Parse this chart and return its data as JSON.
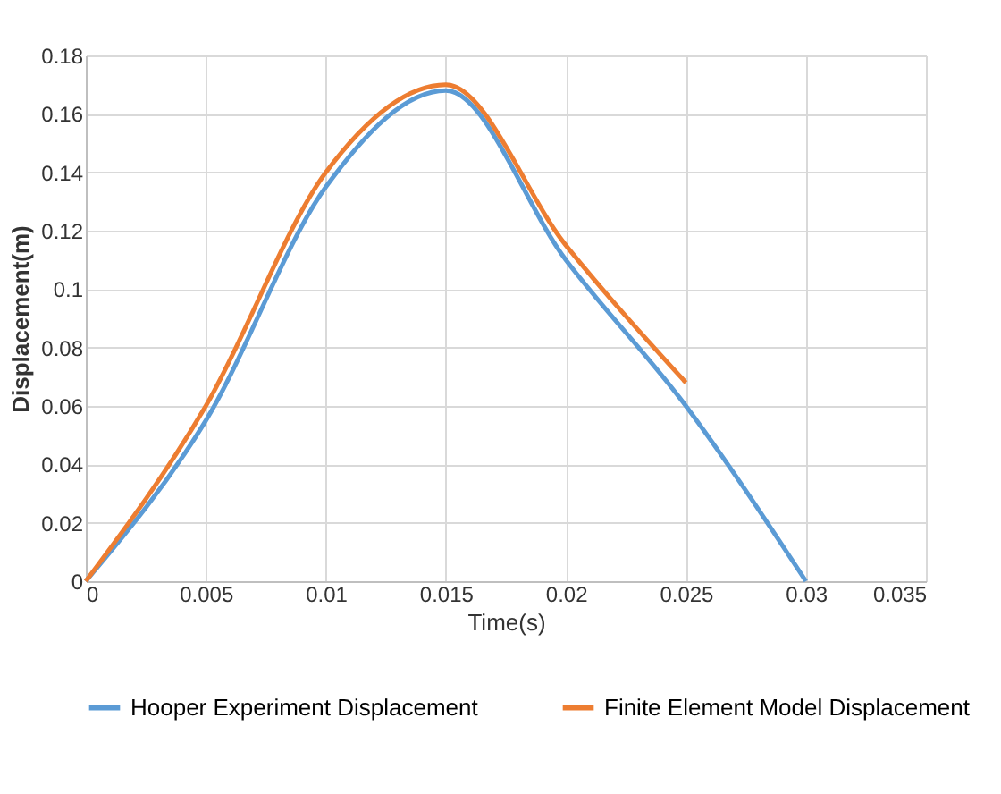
{
  "chart_data": {
    "type": "line",
    "xlabel": "Time(s)",
    "ylabel": "Displacement(m)",
    "x": [
      0,
      0.005,
      0.01,
      0.015,
      0.02,
      0.025,
      0.03
    ],
    "series": [
      {
        "name": "Hooper Experiment Displacement",
        "color": "#5b9bd5",
        "values": [
          0,
          0.055,
          0.135,
          0.168,
          0.11,
          0.06,
          0
        ]
      },
      {
        "name": "Finite Element Model Displacement",
        "color": "#ed7d31",
        "x": [
          0,
          0.005,
          0.01,
          0.015,
          0.02,
          0.025
        ],
        "values": [
          0,
          0.06,
          0.14,
          0.17,
          0.115,
          0.068
        ]
      }
    ],
    "xlim": [
      0,
      0.035
    ],
    "xticks": [
      0,
      0.005,
      0.01,
      0.015,
      0.02,
      0.025,
      0.03,
      0.035
    ],
    "ylim": [
      0,
      0.18
    ],
    "yticks": [
      0,
      0.02,
      0.04,
      0.06,
      0.08,
      0.1,
      0.12,
      0.14,
      0.16,
      0.18
    ],
    "grid": true,
    "legend": "bottom",
    "marker": "none",
    "line_style": "solid"
  }
}
